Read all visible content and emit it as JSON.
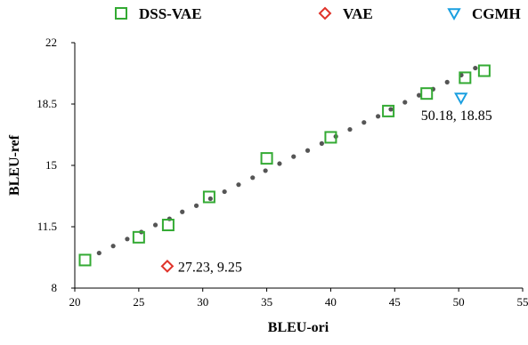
{
  "chart_data": {
    "type": "scatter",
    "xlabel": "BLEU-ori",
    "ylabel": "BLEU-ref",
    "xlim": [
      20,
      55
    ],
    "ylim": [
      8,
      22
    ],
    "xticks": [
      "20",
      "25",
      "30",
      "35",
      "40",
      "45",
      "50",
      "55"
    ],
    "yticks": [
      "8",
      "11.5",
      "15",
      "18.5",
      "22"
    ],
    "grid": false,
    "legend_position": "top",
    "series": [
      {
        "name": "DSS-VAE",
        "marker": "square",
        "color": "#33aa33",
        "points": [
          {
            "x": 20.8,
            "y": 9.6
          },
          {
            "x": 25.0,
            "y": 10.9
          },
          {
            "x": 27.3,
            "y": 11.6
          },
          {
            "x": 30.5,
            "y": 13.2
          },
          {
            "x": 35.0,
            "y": 15.4
          },
          {
            "x": 40.0,
            "y": 16.6
          },
          {
            "x": 44.5,
            "y": 18.1
          },
          {
            "x": 47.5,
            "y": 19.1
          },
          {
            "x": 50.5,
            "y": 20.0
          },
          {
            "x": 52.0,
            "y": 20.4
          }
        ]
      },
      {
        "name": "VAE",
        "marker": "diamond",
        "color": "#e0332a",
        "points": [
          {
            "x": 27.23,
            "y": 9.25
          }
        ]
      },
      {
        "name": "CGMH",
        "marker": "triangle-down",
        "color": "#1a9fe0",
        "points": [
          {
            "x": 50.18,
            "y": 18.85
          }
        ]
      }
    ],
    "trend_points": [
      {
        "x": 21.9,
        "y": 10.0
      },
      {
        "x": 23.0,
        "y": 10.4
      },
      {
        "x": 24.1,
        "y": 10.8
      },
      {
        "x": 25.2,
        "y": 11.2
      },
      {
        "x": 26.3,
        "y": 11.6
      },
      {
        "x": 27.4,
        "y": 11.95
      },
      {
        "x": 28.4,
        "y": 12.35
      },
      {
        "x": 29.5,
        "y": 12.7
      },
      {
        "x": 30.6,
        "y": 13.1
      },
      {
        "x": 31.7,
        "y": 13.5
      },
      {
        "x": 32.8,
        "y": 13.9
      },
      {
        "x": 33.9,
        "y": 14.3
      },
      {
        "x": 34.9,
        "y": 14.7
      },
      {
        "x": 36.0,
        "y": 15.1
      },
      {
        "x": 37.1,
        "y": 15.5
      },
      {
        "x": 38.2,
        "y": 15.85
      },
      {
        "x": 39.3,
        "y": 16.25
      },
      {
        "x": 40.4,
        "y": 16.65
      },
      {
        "x": 41.5,
        "y": 17.05
      },
      {
        "x": 42.6,
        "y": 17.45
      },
      {
        "x": 43.7,
        "y": 17.8
      },
      {
        "x": 44.7,
        "y": 18.2
      },
      {
        "x": 45.8,
        "y": 18.6
      },
      {
        "x": 46.9,
        "y": 19.0
      },
      {
        "x": 48.0,
        "y": 19.35
      },
      {
        "x": 49.1,
        "y": 19.75
      },
      {
        "x": 50.2,
        "y": 20.15
      },
      {
        "x": 51.3,
        "y": 20.55
      }
    ],
    "annotations": [
      {
        "text": "50.18, 18.85",
        "x": 50.18,
        "y": 18.85,
        "placement": "below"
      },
      {
        "text": "27.23, 9.25",
        "x": 27.23,
        "y": 9.25,
        "placement": "right"
      }
    ]
  }
}
